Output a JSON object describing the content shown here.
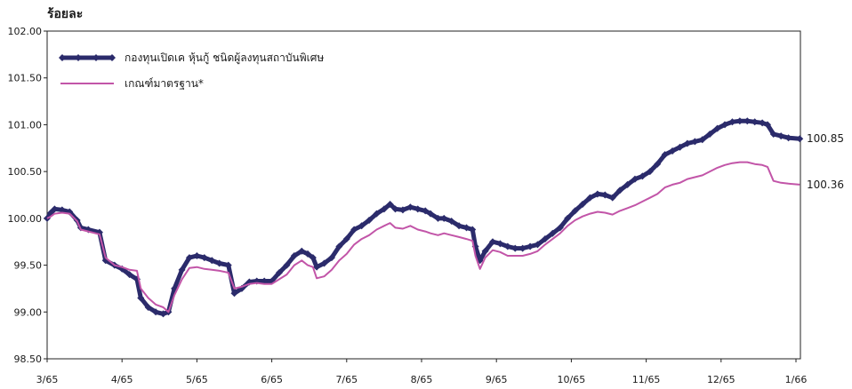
{
  "chart_data": {
    "type": "line",
    "ylabel": "ร้อยละ",
    "ylim": [
      98.5,
      102.0
    ],
    "yticks": [
      "102.00",
      "101.50",
      "101.00",
      "100.50",
      "100.00",
      "99.50",
      "99.00",
      "98.50"
    ],
    "ytick_values": [
      102.0,
      101.5,
      101.0,
      100.5,
      100.0,
      99.5,
      99.0,
      98.5
    ],
    "x_ticks": [
      "3/65",
      "4/65",
      "5/65",
      "6/65",
      "7/65",
      "8/65",
      "9/65",
      "10/65",
      "11/65",
      "12/65",
      "1/66"
    ],
    "legend_position": "top-left",
    "grid": false,
    "series": [
      {
        "name": "กองทุนเปิดเค หุ้นกู้ ชนิดผู้ลงทุนสถาบันพิเศษ",
        "color": "#2b2b6b",
        "style": "thick-with-markers",
        "end_value": "100.85",
        "points": [
          [
            0.0,
            100.0
          ],
          [
            0.05,
            100.06
          ],
          [
            0.1,
            100.1
          ],
          [
            0.2,
            100.09
          ],
          [
            0.3,
            100.07
          ],
          [
            0.4,
            99.98
          ],
          [
            0.45,
            99.9
          ],
          [
            0.55,
            99.88
          ],
          [
            0.7,
            99.85
          ],
          [
            0.78,
            99.55
          ],
          [
            0.9,
            99.5
          ],
          [
            1.0,
            99.46
          ],
          [
            1.1,
            99.4
          ],
          [
            1.2,
            99.35
          ],
          [
            1.25,
            99.15
          ],
          [
            1.35,
            99.05
          ],
          [
            1.45,
            99.0
          ],
          [
            1.55,
            98.98
          ],
          [
            1.62,
            99.0
          ],
          [
            1.7,
            99.25
          ],
          [
            1.8,
            99.45
          ],
          [
            1.9,
            99.58
          ],
          [
            2.0,
            99.6
          ],
          [
            2.1,
            99.58
          ],
          [
            2.2,
            99.55
          ],
          [
            2.3,
            99.52
          ],
          [
            2.42,
            99.5
          ],
          [
            2.5,
            99.2
          ],
          [
            2.6,
            99.25
          ],
          [
            2.7,
            99.32
          ],
          [
            2.8,
            99.33
          ],
          [
            2.9,
            99.33
          ],
          [
            3.0,
            99.33
          ],
          [
            3.1,
            99.42
          ],
          [
            3.2,
            99.5
          ],
          [
            3.3,
            99.6
          ],
          [
            3.4,
            99.65
          ],
          [
            3.48,
            99.62
          ],
          [
            3.55,
            99.58
          ],
          [
            3.6,
            99.48
          ],
          [
            3.7,
            99.52
          ],
          [
            3.8,
            99.58
          ],
          [
            3.9,
            99.7
          ],
          [
            4.0,
            99.78
          ],
          [
            4.1,
            99.88
          ],
          [
            4.2,
            99.92
          ],
          [
            4.3,
            99.98
          ],
          [
            4.4,
            100.05
          ],
          [
            4.5,
            100.1
          ],
          [
            4.58,
            100.15
          ],
          [
            4.65,
            100.1
          ],
          [
            4.75,
            100.09
          ],
          [
            4.85,
            100.12
          ],
          [
            4.95,
            100.1
          ],
          [
            5.05,
            100.08
          ],
          [
            5.12,
            100.05
          ],
          [
            5.22,
            100.0
          ],
          [
            5.3,
            100.0
          ],
          [
            5.4,
            99.97
          ],
          [
            5.5,
            99.92
          ],
          [
            5.6,
            99.9
          ],
          [
            5.68,
            99.88
          ],
          [
            5.72,
            99.7
          ],
          [
            5.78,
            99.55
          ],
          [
            5.85,
            99.65
          ],
          [
            5.95,
            99.75
          ],
          [
            6.05,
            99.73
          ],
          [
            6.15,
            99.7
          ],
          [
            6.25,
            99.68
          ],
          [
            6.35,
            99.68
          ],
          [
            6.45,
            99.7
          ],
          [
            6.55,
            99.72
          ],
          [
            6.65,
            99.78
          ],
          [
            6.75,
            99.84
          ],
          [
            6.85,
            99.9
          ],
          [
            6.95,
            100.0
          ],
          [
            7.05,
            100.08
          ],
          [
            7.15,
            100.15
          ],
          [
            7.25,
            100.22
          ],
          [
            7.35,
            100.26
          ],
          [
            7.45,
            100.25
          ],
          [
            7.55,
            100.22
          ],
          [
            7.65,
            100.3
          ],
          [
            7.75,
            100.36
          ],
          [
            7.85,
            100.42
          ],
          [
            7.95,
            100.45
          ],
          [
            8.05,
            100.5
          ],
          [
            8.15,
            100.58
          ],
          [
            8.25,
            100.68
          ],
          [
            8.35,
            100.72
          ],
          [
            8.45,
            100.76
          ],
          [
            8.55,
            100.8
          ],
          [
            8.65,
            100.82
          ],
          [
            8.75,
            100.84
          ],
          [
            8.85,
            100.9
          ],
          [
            8.95,
            100.96
          ],
          [
            9.05,
            101.0
          ],
          [
            9.15,
            101.03
          ],
          [
            9.25,
            101.04
          ],
          [
            9.35,
            101.04
          ],
          [
            9.45,
            101.03
          ],
          [
            9.55,
            101.02
          ],
          [
            9.62,
            101.0
          ],
          [
            9.7,
            100.9
          ],
          [
            9.8,
            100.88
          ],
          [
            9.9,
            100.86
          ],
          [
            10.05,
            100.85
          ]
        ]
      },
      {
        "name": "เกณฑ์มาตรฐาน*",
        "color": "#c255a8",
        "style": "thin",
        "end_value": "100.36",
        "points": [
          [
            0.0,
            100.0
          ],
          [
            0.05,
            100.02
          ],
          [
            0.1,
            100.05
          ],
          [
            0.2,
            100.06
          ],
          [
            0.3,
            100.05
          ],
          [
            0.4,
            99.97
          ],
          [
            0.45,
            99.88
          ],
          [
            0.55,
            99.86
          ],
          [
            0.7,
            99.83
          ],
          [
            0.78,
            99.58
          ],
          [
            0.9,
            99.5
          ],
          [
            1.0,
            99.48
          ],
          [
            1.1,
            99.45
          ],
          [
            1.2,
            99.44
          ],
          [
            1.25,
            99.25
          ],
          [
            1.35,
            99.15
          ],
          [
            1.45,
            99.08
          ],
          [
            1.55,
            99.05
          ],
          [
            1.62,
            99.0
          ],
          [
            1.7,
            99.18
          ],
          [
            1.8,
            99.35
          ],
          [
            1.9,
            99.47
          ],
          [
            2.0,
            99.48
          ],
          [
            2.1,
            99.46
          ],
          [
            2.2,
            99.45
          ],
          [
            2.3,
            99.44
          ],
          [
            2.42,
            99.42
          ],
          [
            2.5,
            99.25
          ],
          [
            2.6,
            99.27
          ],
          [
            2.7,
            99.3
          ],
          [
            2.8,
            99.31
          ],
          [
            2.9,
            99.3
          ],
          [
            3.0,
            99.3
          ],
          [
            3.1,
            99.35
          ],
          [
            3.2,
            99.4
          ],
          [
            3.3,
            99.5
          ],
          [
            3.4,
            99.55
          ],
          [
            3.48,
            99.5
          ],
          [
            3.55,
            99.48
          ],
          [
            3.6,
            99.36
          ],
          [
            3.7,
            99.38
          ],
          [
            3.8,
            99.45
          ],
          [
            3.9,
            99.55
          ],
          [
            4.0,
            99.62
          ],
          [
            4.1,
            99.72
          ],
          [
            4.2,
            99.78
          ],
          [
            4.3,
            99.82
          ],
          [
            4.4,
            99.88
          ],
          [
            4.5,
            99.92
          ],
          [
            4.58,
            99.95
          ],
          [
            4.65,
            99.9
          ],
          [
            4.75,
            99.89
          ],
          [
            4.85,
            99.92
          ],
          [
            4.95,
            99.88
          ],
          [
            5.05,
            99.86
          ],
          [
            5.12,
            99.84
          ],
          [
            5.22,
            99.82
          ],
          [
            5.3,
            99.84
          ],
          [
            5.4,
            99.82
          ],
          [
            5.5,
            99.8
          ],
          [
            5.6,
            99.78
          ],
          [
            5.68,
            99.76
          ],
          [
            5.72,
            99.6
          ],
          [
            5.78,
            99.46
          ],
          [
            5.85,
            99.58
          ],
          [
            5.95,
            99.66
          ],
          [
            6.05,
            99.64
          ],
          [
            6.15,
            99.6
          ],
          [
            6.25,
            99.6
          ],
          [
            6.35,
            99.6
          ],
          [
            6.45,
            99.62
          ],
          [
            6.55,
            99.65
          ],
          [
            6.65,
            99.72
          ],
          [
            6.75,
            99.78
          ],
          [
            6.85,
            99.84
          ],
          [
            6.95,
            99.92
          ],
          [
            7.05,
            99.98
          ],
          [
            7.15,
            100.02
          ],
          [
            7.25,
            100.05
          ],
          [
            7.35,
            100.07
          ],
          [
            7.45,
            100.06
          ],
          [
            7.55,
            100.04
          ],
          [
            7.65,
            100.08
          ],
          [
            7.75,
            100.11
          ],
          [
            7.85,
            100.14
          ],
          [
            7.95,
            100.18
          ],
          [
            8.05,
            100.22
          ],
          [
            8.15,
            100.26
          ],
          [
            8.25,
            100.33
          ],
          [
            8.35,
            100.36
          ],
          [
            8.45,
            100.38
          ],
          [
            8.55,
            100.42
          ],
          [
            8.65,
            100.44
          ],
          [
            8.75,
            100.46
          ],
          [
            8.85,
            100.5
          ],
          [
            8.95,
            100.54
          ],
          [
            9.05,
            100.57
          ],
          [
            9.15,
            100.59
          ],
          [
            9.25,
            100.6
          ],
          [
            9.35,
            100.6
          ],
          [
            9.45,
            100.58
          ],
          [
            9.55,
            100.57
          ],
          [
            9.62,
            100.55
          ],
          [
            9.7,
            100.4
          ],
          [
            9.8,
            100.38
          ],
          [
            9.9,
            100.37
          ],
          [
            10.05,
            100.36
          ]
        ]
      }
    ]
  }
}
